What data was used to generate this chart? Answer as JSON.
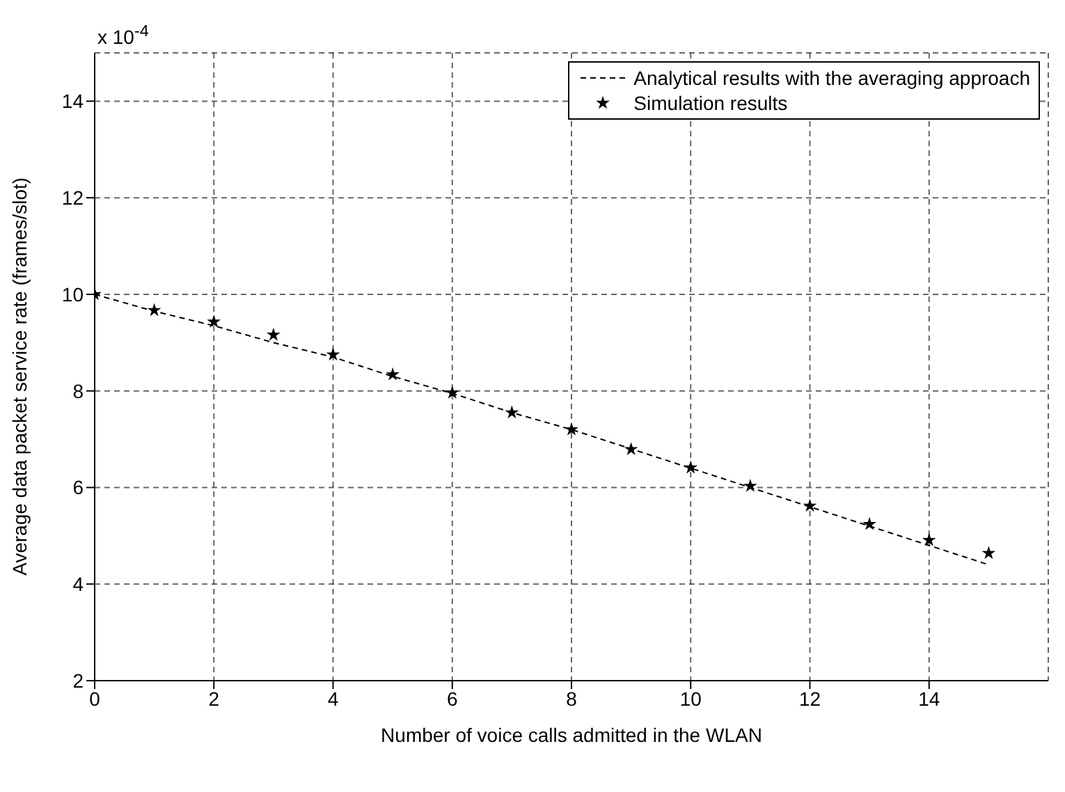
{
  "chart_data": {
    "type": "line",
    "xlabel": "Number of voice calls admitted in the WLAN",
    "ylabel": "Average data packet service rate (frames/slot)",
    "annotations": [
      "x 10$^{-4}$"
    ],
    "series": [
      {
        "name": "Analytical results with the averaging approach",
        "type": "line",
        "color": "#000000",
        "line_style": "dashed",
        "marker": "none",
        "x": [
          0,
          1,
          2,
          3,
          4,
          5,
          6,
          7,
          8,
          9,
          10,
          11,
          12,
          13,
          14,
          15
        ],
        "values": [
          10.0,
          9.65,
          9.35,
          9.0,
          8.7,
          8.3,
          7.95,
          7.55,
          7.2,
          6.8,
          6.4,
          6.0,
          5.6,
          5.2,
          4.8,
          4.4
        ]
      },
      {
        "name": "Simulation results",
        "type": "scatter",
        "color": "#000000",
        "marker": "star",
        "x": [
          0,
          1,
          2,
          3,
          4,
          5,
          6,
          7,
          8,
          9,
          10,
          11,
          12,
          13,
          14,
          15
        ],
        "values": [
          10.0,
          9.67,
          9.43,
          9.16,
          8.75,
          8.34,
          7.96,
          7.55,
          7.2,
          6.79,
          6.41,
          6.03,
          5.62,
          5.24,
          4.91,
          4.64
        ]
      }
    ],
    "xlim": [
      0,
      16
    ],
    "xticks": [
      0,
      2,
      4,
      6,
      8,
      10,
      12,
      14
    ],
    "ylim": [
      2,
      15
    ],
    "yticks": [
      2,
      4,
      6,
      8,
      10,
      12,
      14
    ],
    "grid": true,
    "legend": "top right"
  }
}
